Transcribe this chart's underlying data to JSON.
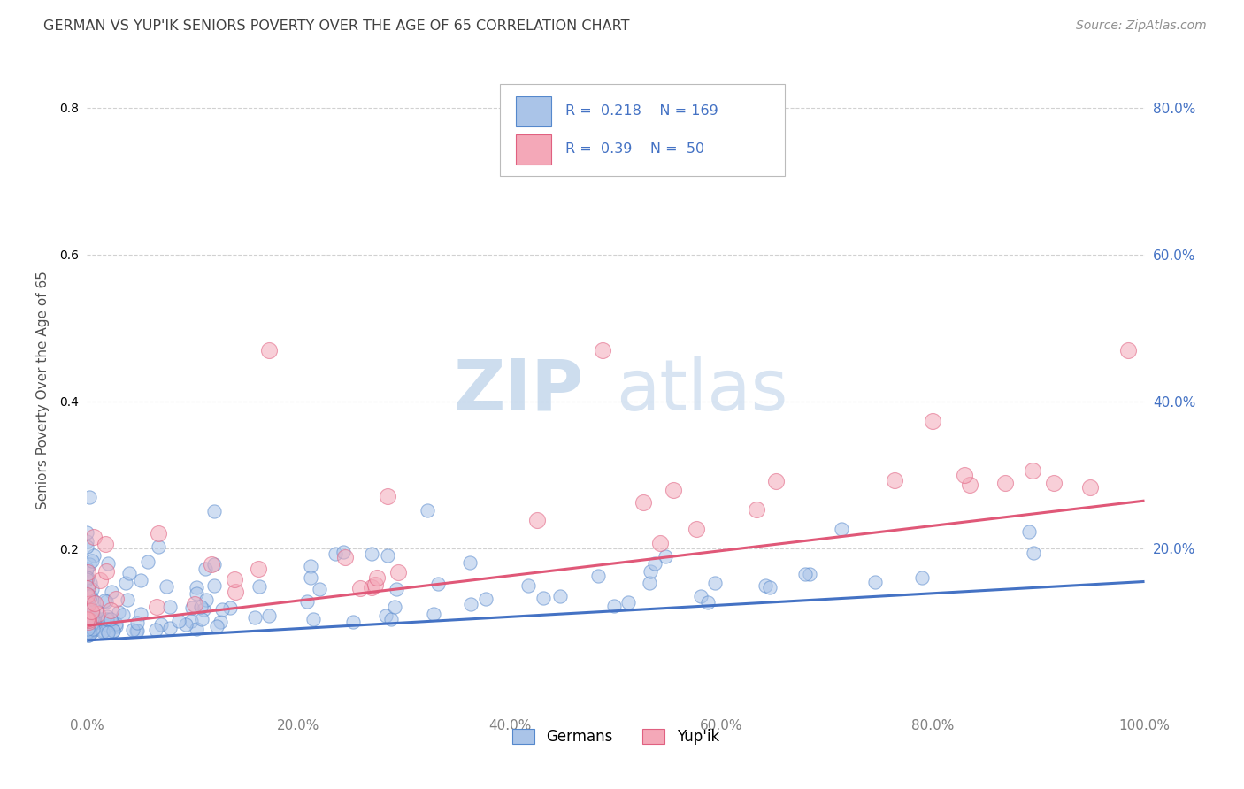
{
  "title": "GERMAN VS YUP'IK SENIORS POVERTY OVER THE AGE OF 65 CORRELATION CHART",
  "source": "Source: ZipAtlas.com",
  "ylabel": "Seniors Poverty Over the Age of 65",
  "watermark_zip": "ZIP",
  "watermark_atlas": "atlas",
  "german_R": 0.218,
  "german_N": 169,
  "yupik_R": 0.39,
  "yupik_N": 50,
  "german_color": "#aac4e8",
  "yupik_color": "#f4a8b8",
  "german_edge_color": "#5588cc",
  "yupik_edge_color": "#e06080",
  "german_line_color": "#4472c4",
  "yupik_line_color": "#e05878",
  "background_color": "#ffffff",
  "grid_color": "#cccccc",
  "title_color": "#404040",
  "axis_label_color": "#505050",
  "legend_text_color": "#4472c4",
  "right_tick_color": "#4472c4",
  "xlim": [
    0.0,
    1.0
  ],
  "ylim": [
    -0.02,
    0.85
  ],
  "german_trend_x0": 0.0,
  "german_trend_y0": 0.075,
  "german_trend_x1": 1.0,
  "german_trend_y1": 0.155,
  "yupik_trend_x0": 0.0,
  "yupik_trend_y0": 0.095,
  "yupik_trend_x1": 1.0,
  "yupik_trend_y1": 0.265,
  "marker_size": 120,
  "marker_alpha": 0.55,
  "marker_linewidth": 0.8
}
